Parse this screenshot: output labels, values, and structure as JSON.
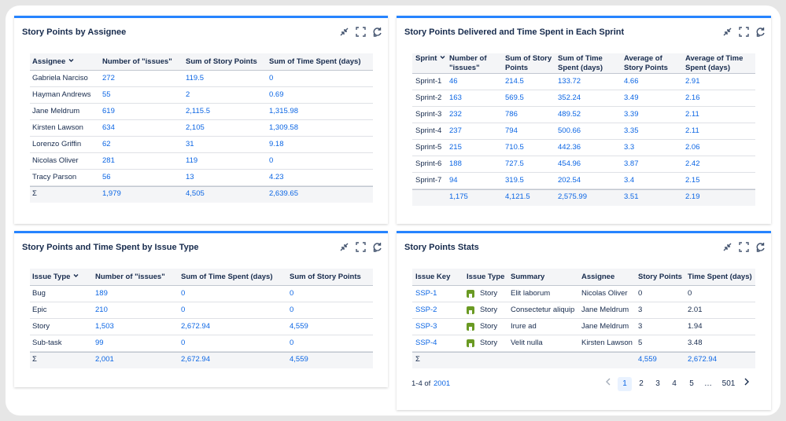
{
  "panels": [
    {
      "title": "Story Points by Assignee",
      "table": {
        "headers": [
          "Assignee",
          "Number of \"issues\"",
          "Sum of Story Points",
          "Sum of Time Spent (days)"
        ],
        "rows": [
          [
            "Gabriela Narciso",
            "272",
            "119.5",
            "0"
          ],
          [
            "Hayman Andrews",
            "55",
            "2",
            "0.69"
          ],
          [
            "Jane Meldrum",
            "619",
            "2,115.5",
            "1,315.98"
          ],
          [
            "Kirsten Lawson",
            "634",
            "2,105",
            "1,309.58"
          ],
          [
            "Lorenzo Griffin",
            "62",
            "31",
            "9.18"
          ],
          [
            "Nicolas Oliver",
            "281",
            "119",
            "0"
          ],
          [
            "Tracy Parson",
            "56",
            "13",
            "4.23"
          ]
        ],
        "footer": [
          "Σ",
          "1,979",
          "4,505",
          "2,639.65"
        ]
      }
    },
    {
      "title": "Story Points Delivered and Time Spent in Each Sprint",
      "table": {
        "headers": [
          "Sprint",
          "Number of \"issues\"",
          "Sum of Story Points",
          "Sum of Time Spent (days)",
          "Average of Story Points",
          "Average of Time Spent (days)"
        ],
        "rows": [
          [
            "Sprint-1",
            "46",
            "214.5",
            "133.72",
            "4.66",
            "2.91"
          ],
          [
            "Sprint-2",
            "163",
            "569.5",
            "352.24",
            "3.49",
            "2.16"
          ],
          [
            "Sprint-3",
            "232",
            "786",
            "489.52",
            "3.39",
            "2.11"
          ],
          [
            "Sprint-4",
            "237",
            "794",
            "500.66",
            "3.35",
            "2.11"
          ],
          [
            "Sprint-5",
            "215",
            "710.5",
            "442.36",
            "3.3",
            "2.06"
          ],
          [
            "Sprint-6",
            "188",
            "727.5",
            "454.96",
            "3.87",
            "2.42"
          ],
          [
            "Sprint-7",
            "94",
            "319.5",
            "202.54",
            "3.4",
            "2.15"
          ]
        ],
        "footer": [
          null,
          "1,175",
          "4,121.5",
          "2,575.99",
          "3.51",
          "2.19"
        ]
      }
    },
    {
      "title": "Story Points and Time Spent by Issue Type",
      "table": {
        "headers": [
          "Issue Type",
          "Number of \"issues\"",
          "Sum of Time Spent (days)",
          "Sum of Story Points"
        ],
        "rows": [
          [
            "Bug",
            "189",
            "0",
            "0"
          ],
          [
            "Epic",
            "210",
            "0",
            "0"
          ],
          [
            "Story",
            "1,503",
            "2,672.94",
            "4,559"
          ],
          [
            "Sub-task",
            "99",
            "0",
            "0"
          ]
        ],
        "footer": [
          "Σ",
          "2,001",
          "2,672.94",
          "4,559"
        ]
      }
    },
    {
      "title": "Story Points Stats",
      "table": {
        "headers": [
          "Issue Key",
          "Issue Type",
          "Summary",
          "Assignee",
          "Story Points",
          "Time Spent (days)"
        ],
        "rows": [
          [
            "SSP-1",
            "Story",
            "Elit laborum",
            "Nicolas Oliver",
            "0",
            "0"
          ],
          [
            "SSP-2",
            "Story",
            "Consectetur aliquip",
            "Jane Meldrum",
            "3",
            "2.01"
          ],
          [
            "SSP-3",
            "Story",
            "Irure ad",
            "Jane Meldrum",
            "3",
            "1.94"
          ],
          [
            "SSP-4",
            "Story",
            "Velit nulla",
            "Kirsten Lawson",
            "5",
            "3.48"
          ]
        ],
        "footer": [
          "Σ",
          null,
          null,
          null,
          "4,559",
          "2,672.94"
        ]
      },
      "pagination": {
        "range": "1-4 of",
        "total": "2001",
        "pages": [
          "1",
          "2",
          "3",
          "4",
          "5",
          "…",
          "501"
        ]
      }
    }
  ]
}
